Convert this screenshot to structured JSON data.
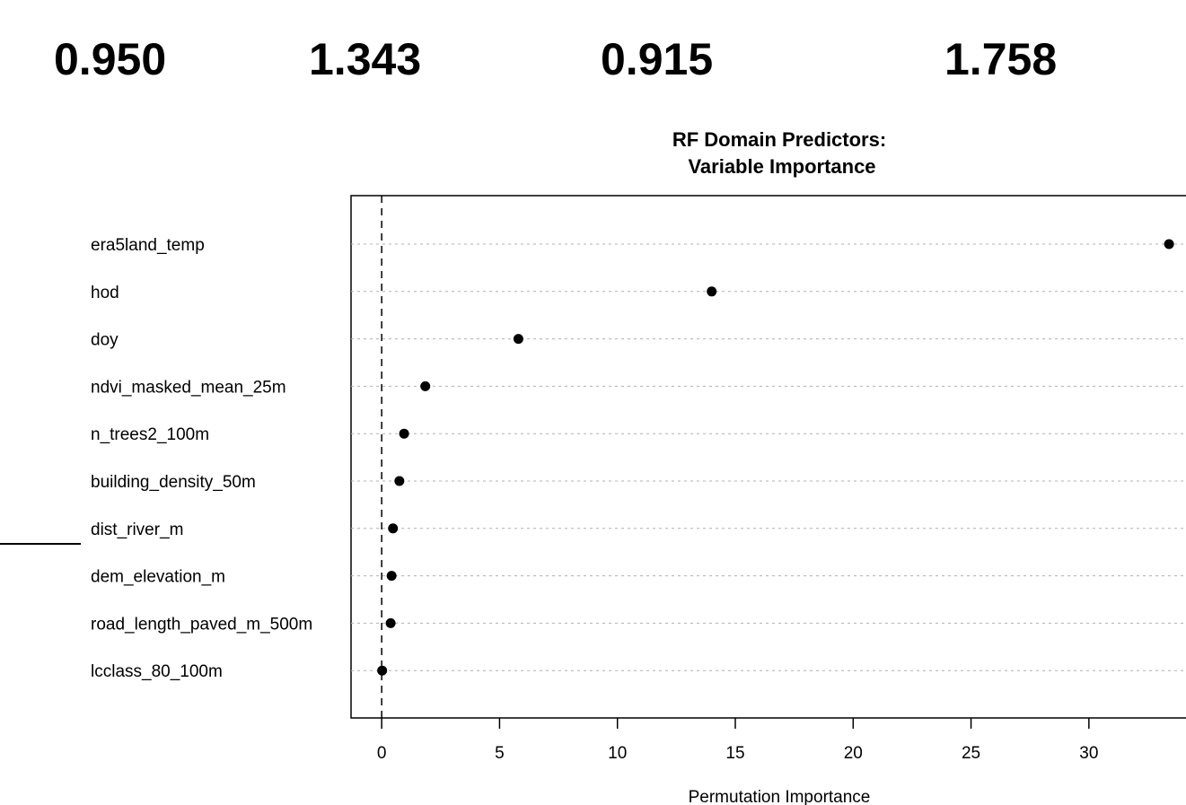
{
  "metrics": [
    "0.950",
    "1.343",
    "0.915",
    "1.758"
  ],
  "chart_data": {
    "type": "scatter",
    "title": [
      "RF Domain Predictors:",
      "Variable Importance"
    ],
    "xlabel": "Permutation Importance",
    "ylabel": "",
    "xlim": [
      -1.3,
      34.5
    ],
    "xticks": [
      0,
      5,
      10,
      15,
      20,
      25,
      30
    ],
    "reference_line_x": 0,
    "grid": "horizontal dotted",
    "categories": [
      "era5land_temp",
      "hod",
      "doy",
      "ndvi_masked_mean_25m",
      "n_trees2_100m",
      "building_density_50m",
      "dist_river_m",
      "dem_elevation_m",
      "road_length_paved_m_500m",
      "lcclass_80_100m"
    ],
    "values": [
      33.4,
      14.0,
      5.8,
      1.85,
      0.95,
      0.75,
      0.48,
      0.42,
      0.38,
      0.02
    ]
  }
}
